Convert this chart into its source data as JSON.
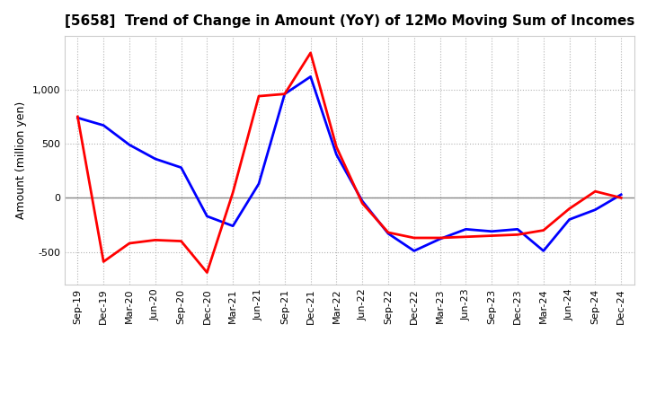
{
  "title": "[5658]  Trend of Change in Amount (YoY) of 12Mo Moving Sum of Incomes",
  "ylabel": "Amount (million yen)",
  "background_color": "#ffffff",
  "grid_color": "#aaaaaa",
  "x_labels": [
    "Sep-19",
    "Dec-19",
    "Mar-20",
    "Jun-20",
    "Sep-20",
    "Dec-20",
    "Mar-21",
    "Jun-21",
    "Sep-21",
    "Dec-21",
    "Mar-22",
    "Jun-22",
    "Sep-22",
    "Dec-22",
    "Mar-23",
    "Jun-23",
    "Sep-23",
    "Dec-23",
    "Mar-24",
    "Jun-24",
    "Sep-24",
    "Dec-24"
  ],
  "ordinary_income": [
    740,
    670,
    490,
    360,
    280,
    -170,
    -260,
    130,
    960,
    1120,
    400,
    -30,
    -330,
    -490,
    -380,
    -290,
    -310,
    -290,
    -490,
    -200,
    -110,
    30
  ],
  "net_income": [
    750,
    -590,
    -420,
    -390,
    -400,
    -690,
    50,
    940,
    960,
    1340,
    470,
    -50,
    -320,
    -370,
    -370,
    -360,
    -350,
    -340,
    -300,
    -100,
    60,
    0
  ],
  "ordinary_color": "#0000ff",
  "net_color": "#ff0000",
  "ylim_min": -800,
  "ylim_max": 1500,
  "yticks": [
    -500,
    0,
    500,
    1000
  ],
  "zero_line_color": "#888888",
  "title_fontsize": 11,
  "axis_fontsize": 8,
  "ylabel_fontsize": 9,
  "legend_fontsize": 9,
  "linewidth": 2.0
}
